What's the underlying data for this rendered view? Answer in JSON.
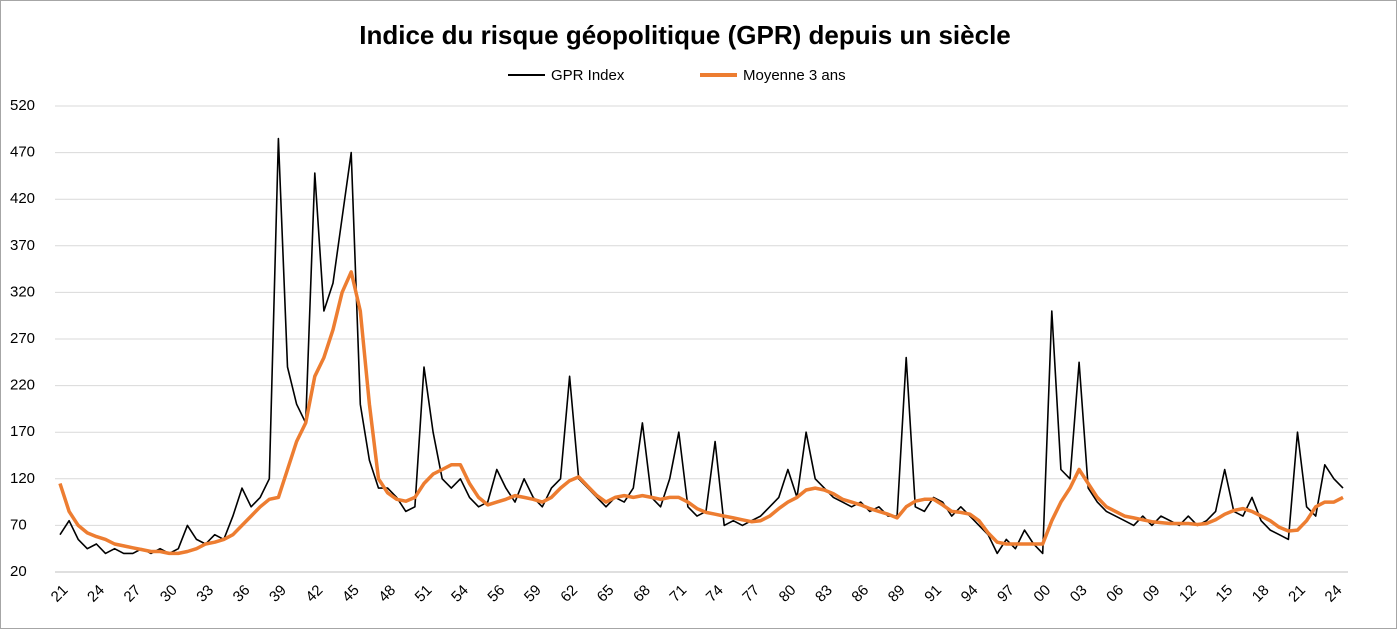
{
  "chart_data": {
    "type": "line",
    "title": "Indice du risque géopolitique (GPR) depuis un siècle",
    "categories": [
      "21",
      null,
      null,
      null,
      "24",
      null,
      null,
      null,
      "27",
      null,
      null,
      null,
      "30",
      null,
      null,
      null,
      "33",
      null,
      null,
      null,
      "36",
      null,
      null,
      null,
      "39",
      null,
      null,
      null,
      "42",
      null,
      null,
      null,
      "45",
      null,
      null,
      null,
      "48",
      null,
      null,
      null,
      "51",
      null,
      null,
      null,
      "54",
      null,
      null,
      null,
      "56",
      null,
      null,
      null,
      "59",
      null,
      null,
      null,
      "62",
      null,
      null,
      null,
      "65",
      null,
      null,
      null,
      "68",
      null,
      null,
      null,
      "71",
      null,
      null,
      null,
      "74",
      null,
      null,
      null,
      "77",
      null,
      null,
      null,
      "80",
      null,
      null,
      null,
      "83",
      null,
      null,
      null,
      "86",
      null,
      null,
      null,
      "89",
      null,
      null,
      null,
      "91",
      null,
      null,
      null,
      "94",
      null,
      null,
      null,
      "97",
      null,
      null,
      null,
      "00",
      null,
      null,
      null,
      "03",
      null,
      null,
      null,
      "06",
      null,
      null,
      null,
      "09",
      null,
      null,
      null,
      "12",
      null,
      null,
      null,
      "15",
      null,
      null,
      null,
      "18",
      null,
      null,
      null,
      "21",
      null,
      null,
      null,
      "24",
      null
    ],
    "series": [
      {
        "name": "GPR Index",
        "color": "#000000",
        "values": [
          60,
          75,
          55,
          45,
          50,
          40,
          45,
          40,
          40,
          45,
          40,
          45,
          40,
          45,
          70,
          55,
          50,
          60,
          55,
          80,
          110,
          90,
          100,
          120,
          485,
          240,
          200,
          180,
          448,
          300,
          330,
          400,
          470,
          200,
          140,
          110,
          110,
          100,
          85,
          90,
          240,
          170,
          120,
          110,
          120,
          100,
          90,
          95,
          130,
          110,
          95,
          120,
          100,
          90,
          110,
          120,
          230,
          120,
          110,
          100,
          90,
          100,
          95,
          110,
          180,
          100,
          90,
          120,
          170,
          90,
          80,
          85,
          160,
          70,
          75,
          70,
          75,
          80,
          90,
          100,
          130,
          100,
          170,
          120,
          110,
          100,
          95,
          90,
          95,
          85,
          90,
          80,
          80,
          250,
          90,
          85,
          100,
          95,
          80,
          90,
          80,
          70,
          60,
          40,
          55,
          45,
          65,
          50,
          40,
          300,
          130,
          120,
          245,
          110,
          95,
          85,
          80,
          75,
          70,
          80,
          70,
          80,
          75,
          70,
          80,
          70,
          75,
          85,
          130,
          85,
          80,
          100,
          75,
          65,
          60,
          55,
          170,
          90,
          80,
          135,
          120,
          110
        ]
      },
      {
        "name": "Moyenne 3 ans",
        "color": "#ED7D31",
        "values": [
          115,
          85,
          70,
          62,
          58,
          55,
          50,
          48,
          46,
          44,
          42,
          42,
          40,
          40,
          42,
          45,
          50,
          52,
          55,
          60,
          70,
          80,
          90,
          98,
          100,
          130,
          160,
          180,
          230,
          250,
          280,
          320,
          342,
          300,
          200,
          120,
          105,
          98,
          96,
          100,
          115,
          125,
          130,
          135,
          135,
          115,
          100,
          92,
          95,
          98,
          102,
          100,
          98,
          95,
          100,
          110,
          118,
          122,
          112,
          102,
          95,
          100,
          102,
          100,
          102,
          100,
          98,
          100,
          100,
          95,
          88,
          84,
          82,
          80,
          78,
          76,
          74,
          75,
          80,
          88,
          95,
          100,
          108,
          110,
          108,
          104,
          98,
          95,
          92,
          88,
          85,
          82,
          78,
          90,
          96,
          98,
          98,
          92,
          85,
          84,
          82,
          75,
          62,
          52,
          50,
          50,
          50,
          50,
          50,
          75,
          95,
          110,
          130,
          115,
          100,
          90,
          85,
          80,
          78,
          76,
          74,
          73,
          72,
          72,
          72,
          71,
          72,
          76,
          82,
          86,
          88,
          85,
          80,
          75,
          68,
          64,
          65,
          75,
          90,
          95,
          95,
          100
        ]
      }
    ],
    "ylim": [
      20,
      520
    ],
    "yticks": [
      20,
      70,
      120,
      170,
      220,
      270,
      320,
      370,
      420,
      470,
      520
    ],
    "grid": true,
    "legend": "top"
  }
}
